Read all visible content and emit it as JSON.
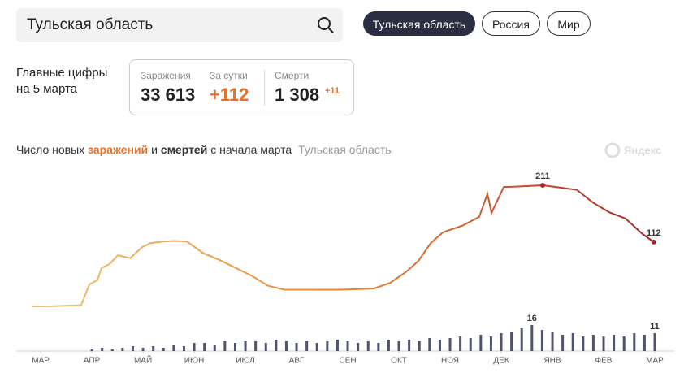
{
  "search": {
    "query": "Тульская область"
  },
  "tabs": [
    "Тульская область",
    "Россия",
    "Мир"
  ],
  "summary": {
    "heading": "Главные цифры на 5 марта",
    "cards": [
      {
        "label": "Заражения",
        "value": "33 613"
      },
      {
        "label": "За сутки",
        "value": "+112"
      },
      {
        "label": "Смерти",
        "value": "1 308",
        "delta": "+11"
      }
    ]
  },
  "title_parts": [
    "Число новых",
    "заражений",
    "и",
    "смертей",
    "с начала марта"
  ],
  "subtitle": "Тульская область",
  "watermark": "Яндекс",
  "chart_data": [
    {
      "type": "line",
      "x": [
        -0.16,
        0.16,
        0.48,
        0.79,
        0.95,
        1.11,
        1.19,
        1.35,
        1.51,
        1.75,
        1.98,
        2.14,
        2.38,
        2.62,
        2.86,
        3.17,
        3.49,
        3.81,
        4.13,
        4.44,
        4.76,
        5.24,
        5.87,
        6.51,
        6.83,
        7.14,
        7.38,
        7.62,
        7.86,
        8.25,
        8.57,
        8.73,
        8.81,
        9.05,
        9.37,
        9.81,
        10.16,
        10.48,
        10.79,
        11.11,
        11.43,
        11.75,
        11.98
      ],
      "values": [
        0,
        0,
        1,
        2,
        38,
        46,
        67,
        74,
        89,
        84,
        103,
        110,
        113,
        114,
        113,
        93,
        81,
        67,
        53,
        36,
        29,
        29,
        29,
        31,
        41,
        60,
        79,
        110,
        129,
        141,
        156,
        196,
        163,
        208,
        209,
        211,
        207,
        203,
        181,
        164,
        153,
        127,
        112
      ],
      "value_labels": [
        null,
        null,
        null,
        null,
        null,
        null,
        null,
        null,
        null,
        null,
        null,
        null,
        null,
        null,
        null,
        null,
        null,
        null,
        null,
        null,
        null,
        null,
        null,
        null,
        null,
        null,
        null,
        null,
        null,
        null,
        null,
        null,
        null,
        null,
        null,
        "211",
        null,
        null,
        null,
        null,
        null,
        null,
        "112"
      ],
      "color": [
        "#f0c56f",
        "#e8863a",
        "#a52828"
      ],
      "xlim": [
        -0.16,
        12
      ],
      "ylim": [
        0,
        211
      ],
      "xticks": [
        {
          "value": 0,
          "label": "МАР"
        },
        {
          "value": 1,
          "label": "АПР"
        },
        {
          "value": 2,
          "label": "МАЙ"
        },
        {
          "value": 3,
          "label": "ИЮН"
        },
        {
          "value": 4,
          "label": "ИЮЛ"
        },
        {
          "value": 5,
          "label": "АВГ"
        },
        {
          "value": 6,
          "label": "СЕН"
        },
        {
          "value": 7,
          "label": "ОКТ"
        },
        {
          "value": 8,
          "label": "НОЯ"
        },
        {
          "value": 9,
          "label": "ДЕК"
        },
        {
          "value": 10,
          "label": "ЯНВ"
        },
        {
          "value": 11,
          "label": "ФЕВ"
        },
        {
          "value": 12,
          "label": "МАР"
        }
      ]
    },
    {
      "type": "bar",
      "x": [
        1.0,
        1.2,
        1.4,
        1.6,
        1.8,
        2.0,
        2.2,
        2.4,
        2.6,
        2.8,
        3.0,
        3.2,
        3.4,
        3.6,
        3.8,
        4.0,
        4.2,
        4.4,
        4.6,
        4.8,
        5.0,
        5.2,
        5.4,
        5.6,
        5.8,
        6.0,
        6.2,
        6.4,
        6.6,
        6.8,
        7.0,
        7.2,
        7.4,
        7.6,
        7.8,
        8.0,
        8.2,
        8.4,
        8.6,
        8.8,
        9.0,
        9.2,
        9.4,
        9.6,
        9.8,
        10.0,
        10.2,
        10.4,
        10.6,
        10.8,
        11.0,
        11.2,
        11.4,
        11.6,
        11.8,
        12.0
      ],
      "values": [
        1,
        2,
        1,
        2,
        3,
        2,
        3,
        2,
        4,
        3,
        5,
        5,
        4,
        6,
        5,
        6,
        6,
        5,
        7,
        6,
        5,
        6,
        5,
        6,
        7,
        6,
        5,
        6,
        5,
        7,
        6,
        7,
        6,
        8,
        7,
        8,
        9,
        8,
        10,
        9,
        11,
        12,
        14,
        16,
        13,
        12,
        10,
        11,
        9,
        10,
        9,
        10,
        9,
        11,
        10,
        11
      ],
      "value_labels": [
        null,
        null,
        null,
        null,
        null,
        null,
        null,
        null,
        null,
        null,
        null,
        null,
        null,
        null,
        null,
        null,
        null,
        null,
        null,
        null,
        null,
        null,
        null,
        null,
        null,
        null,
        null,
        null,
        null,
        null,
        null,
        null,
        null,
        null,
        null,
        null,
        null,
        null,
        null,
        null,
        null,
        null,
        null,
        "16",
        null,
        null,
        null,
        null,
        null,
        null,
        null,
        null,
        null,
        null,
        null,
        "11"
      ],
      "color": "#50536e",
      "xlim": [
        -0.16,
        12
      ],
      "ylim": [
        0,
        16
      ]
    }
  ]
}
